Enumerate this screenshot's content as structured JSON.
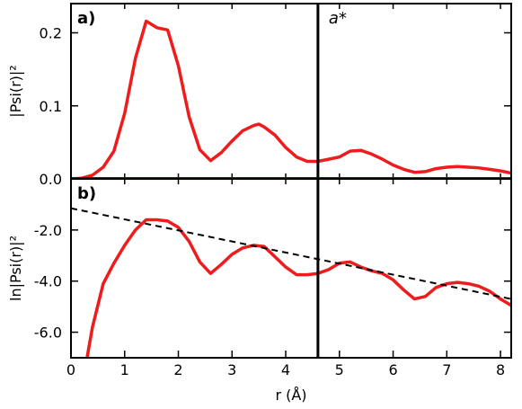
{
  "colors": {
    "series": "#ee1c1c",
    "axis": "#000000",
    "fit": "#000000",
    "background": "#ffffff"
  },
  "chart_data": [
    {
      "type": "line",
      "panel_label": "a)",
      "ylabel": "|Psi(r)|²",
      "xlim": [
        0,
        8.2
      ],
      "ylim": [
        0,
        0.24
      ],
      "yticks": [
        0.0,
        0.1,
        0.2
      ],
      "ytick_labels": [
        "0.0",
        "0.1",
        "0.2"
      ],
      "grid": false,
      "vline": {
        "x": 4.6,
        "label": "a*"
      },
      "series": [
        {
          "x": [
            0.0,
            0.2,
            0.4,
            0.6,
            0.8,
            1.0,
            1.2,
            1.4,
            1.6,
            1.8,
            2.0,
            2.2,
            2.4,
            2.6,
            2.8,
            3.0,
            3.2,
            3.4,
            3.5,
            3.6,
            3.8,
            4.0,
            4.2,
            4.4,
            4.6,
            4.8,
            5.0,
            5.2,
            5.4,
            5.6,
            5.8,
            6.0,
            6.2,
            6.4,
            6.6,
            6.8,
            7.0,
            7.2,
            7.4,
            7.6,
            7.8,
            8.0,
            8.2
          ],
          "y": [
            0.0,
            0.001,
            0.005,
            0.016,
            0.038,
            0.09,
            0.165,
            0.216,
            0.207,
            0.204,
            0.155,
            0.085,
            0.04,
            0.025,
            0.036,
            0.052,
            0.066,
            0.073,
            0.075,
            0.071,
            0.06,
            0.043,
            0.03,
            0.024,
            0.024,
            0.027,
            0.03,
            0.038,
            0.039,
            0.034,
            0.027,
            0.019,
            0.013,
            0.009,
            0.01,
            0.014,
            0.016,
            0.017,
            0.016,
            0.015,
            0.013,
            0.011,
            0.008
          ]
        }
      ]
    },
    {
      "type": "line",
      "panel_label": "b)",
      "xlabel": "r (Å)",
      "ylabel": "ln|Psi(r)|²",
      "xlim": [
        0,
        8.2
      ],
      "ylim": [
        -7.0,
        0.0
      ],
      "xticks": [
        0,
        1,
        2,
        3,
        4,
        5,
        6,
        7,
        8
      ],
      "xtick_labels": [
        "0",
        "1",
        "2",
        "3",
        "4",
        "5",
        "6",
        "7",
        "8"
      ],
      "yticks": [
        -2.0,
        -4.0,
        -6.0
      ],
      "ytick_labels": [
        "-2.0",
        "-4.0",
        "-6.0"
      ],
      "grid": false,
      "vline": {
        "x": 4.6
      },
      "fit_line": {
        "x": [
          0.0,
          8.2
        ],
        "y": [
          -1.15,
          -4.7
        ]
      },
      "series": [
        {
          "x": [
            0.3,
            0.4,
            0.6,
            0.8,
            1.0,
            1.2,
            1.4,
            1.6,
            1.8,
            2.0,
            2.2,
            2.4,
            2.6,
            2.8,
            3.0,
            3.2,
            3.4,
            3.6,
            3.8,
            4.0,
            4.2,
            4.4,
            4.6,
            4.8,
            5.0,
            5.2,
            5.4,
            5.6,
            5.8,
            6.0,
            6.2,
            6.4,
            6.6,
            6.8,
            7.0,
            7.2,
            7.4,
            7.6,
            7.8,
            8.0,
            8.2
          ],
          "y": [
            -7.0,
            -5.8,
            -4.1,
            -3.3,
            -2.6,
            -2.0,
            -1.6,
            -1.6,
            -1.65,
            -1.9,
            -2.45,
            -3.25,
            -3.7,
            -3.35,
            -2.95,
            -2.7,
            -2.6,
            -2.65,
            -3.05,
            -3.45,
            -3.75,
            -3.75,
            -3.7,
            -3.55,
            -3.3,
            -3.25,
            -3.45,
            -3.6,
            -3.7,
            -3.95,
            -4.35,
            -4.7,
            -4.6,
            -4.25,
            -4.1,
            -4.05,
            -4.1,
            -4.2,
            -4.4,
            -4.7,
            -4.95
          ]
        }
      ]
    }
  ]
}
